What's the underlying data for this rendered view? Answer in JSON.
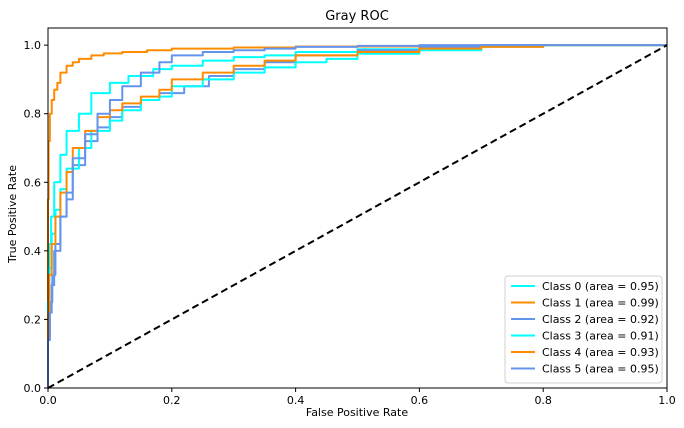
{
  "chart_data": {
    "type": "line",
    "title": "Gray ROC",
    "xlabel": "False Positive Rate",
    "ylabel": "True Positive Rate",
    "xlim": [
      0,
      1
    ],
    "ylim": [
      0,
      1.05
    ],
    "xticks": [
      0.0,
      0.2,
      0.4,
      0.6,
      0.8,
      1.0
    ],
    "yticks": [
      0.0,
      0.2,
      0.4,
      0.6,
      0.8,
      1.0
    ],
    "xtick_labels": [
      "0.0",
      "0.2",
      "0.4",
      "0.6",
      "0.8",
      "1.0"
    ],
    "ytick_labels": [
      "0.0",
      "0.2",
      "0.4",
      "0.6",
      "0.8",
      "1.0"
    ],
    "grid": false,
    "legend_position": "bottom-right",
    "series": [
      {
        "name": "Class 0 (area = 0.95)",
        "color": "#00ffff",
        "x": [
          0,
          0.002,
          0.005,
          0.01,
          0.02,
          0.03,
          0.05,
          0.07,
          0.1,
          0.13,
          0.17,
          0.2,
          0.25,
          0.3,
          0.35,
          0.4,
          0.5,
          0.6,
          0.7,
          0.8,
          1.0
        ],
        "y": [
          0,
          0.3,
          0.42,
          0.5,
          0.6,
          0.68,
          0.75,
          0.8,
          0.86,
          0.89,
          0.91,
          0.93,
          0.94,
          0.955,
          0.965,
          0.97,
          0.98,
          0.988,
          0.993,
          0.997,
          1.0
        ]
      },
      {
        "name": "Class 1 (area = 0.99)",
        "color": "#ff8c00",
        "x": [
          0,
          0.001,
          0.003,
          0.006,
          0.01,
          0.015,
          0.02,
          0.03,
          0.04,
          0.05,
          0.07,
          0.09,
          0.12,
          0.16,
          0.2,
          0.3,
          0.4,
          0.6,
          0.8,
          1.0
        ],
        "y": [
          0,
          0.55,
          0.72,
          0.8,
          0.84,
          0.87,
          0.89,
          0.92,
          0.94,
          0.95,
          0.96,
          0.97,
          0.976,
          0.98,
          0.985,
          0.99,
          0.993,
          0.996,
          0.998,
          1.0
        ]
      },
      {
        "name": "Class 2 (area = 0.92)",
        "color": "#6495ed",
        "x": [
          0,
          0.003,
          0.007,
          0.012,
          0.02,
          0.03,
          0.04,
          0.06,
          0.08,
          0.1,
          0.12,
          0.15,
          0.18,
          0.22,
          0.26,
          0.3,
          0.35,
          0.4,
          0.5,
          0.6,
          0.7,
          1.0
        ],
        "y": [
          0,
          0.15,
          0.25,
          0.33,
          0.42,
          0.5,
          0.55,
          0.65,
          0.72,
          0.76,
          0.79,
          0.82,
          0.84,
          0.86,
          0.88,
          0.91,
          0.93,
          0.95,
          0.97,
          0.985,
          0.995,
          1.0
        ]
      },
      {
        "name": "Class 3 (area = 0.91)",
        "color": "#00ffff",
        "x": [
          0,
          0.002,
          0.006,
          0.012,
          0.02,
          0.03,
          0.05,
          0.07,
          0.1,
          0.12,
          0.15,
          0.18,
          0.2,
          0.25,
          0.3,
          0.35,
          0.4,
          0.45,
          0.5,
          0.6,
          0.7,
          0.8,
          1.0
        ],
        "y": [
          0,
          0.25,
          0.35,
          0.45,
          0.52,
          0.58,
          0.64,
          0.7,
          0.75,
          0.78,
          0.81,
          0.84,
          0.85,
          0.88,
          0.9,
          0.92,
          0.935,
          0.95,
          0.96,
          0.975,
          0.985,
          0.995,
          1.0
        ]
      },
      {
        "name": "Class 4 (area = 0.93)",
        "color": "#ff8c00",
        "x": [
          0,
          0.002,
          0.006,
          0.012,
          0.02,
          0.03,
          0.04,
          0.06,
          0.08,
          0.1,
          0.12,
          0.15,
          0.18,
          0.2,
          0.25,
          0.3,
          0.35,
          0.4,
          0.5,
          0.6,
          0.7,
          0.8,
          1.0
        ],
        "y": [
          0,
          0.22,
          0.33,
          0.42,
          0.5,
          0.57,
          0.63,
          0.7,
          0.75,
          0.79,
          0.81,
          0.83,
          0.85,
          0.87,
          0.9,
          0.92,
          0.94,
          0.955,
          0.97,
          0.98,
          0.99,
          0.995,
          1.0
        ]
      },
      {
        "name": "Class 5 (area = 0.95)",
        "color": "#6495ed",
        "x": [
          0,
          0.003,
          0.006,
          0.01,
          0.02,
          0.03,
          0.04,
          0.06,
          0.08,
          0.1,
          0.12,
          0.15,
          0.18,
          0.2,
          0.25,
          0.3,
          0.35,
          0.4,
          0.5,
          0.6,
          1.0
        ],
        "y": [
          0,
          0.14,
          0.22,
          0.3,
          0.4,
          0.5,
          0.57,
          0.67,
          0.74,
          0.8,
          0.84,
          0.88,
          0.92,
          0.95,
          0.97,
          0.98,
          0.985,
          0.99,
          0.995,
          0.998,
          1.0
        ]
      }
    ],
    "reference_line": {
      "color": "#000000",
      "style": "dashed",
      "x": [
        0,
        1
      ],
      "y": [
        0,
        1
      ]
    }
  }
}
